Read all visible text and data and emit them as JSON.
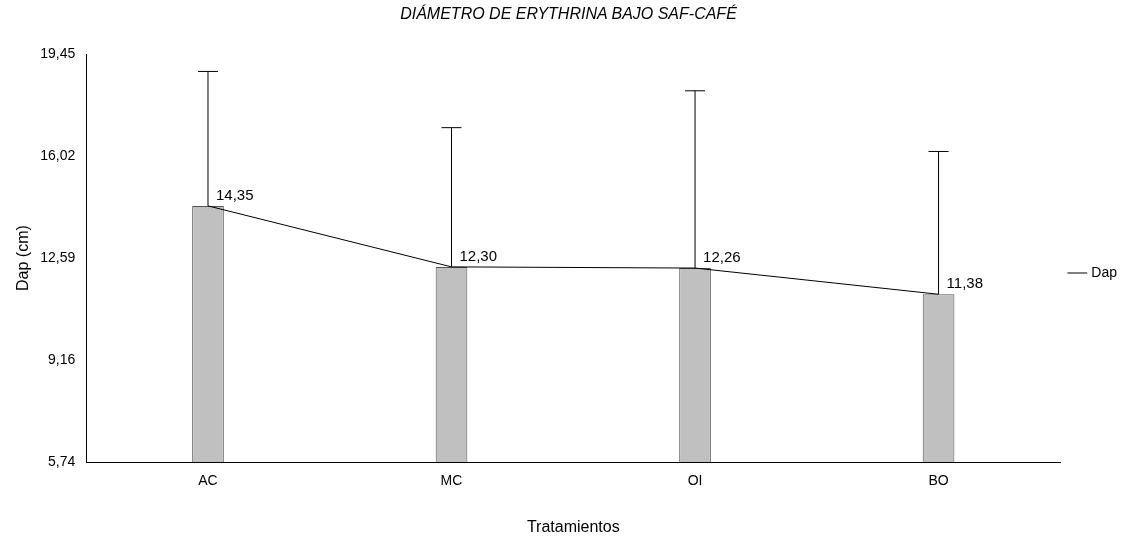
{
  "chart_data": {
    "type": "bar",
    "title": "DIÁMETRO DE ERYTHRINA BAJO SAF-CAFÉ",
    "xlabel": "Tratamientos",
    "ylabel": "Dap (cm)",
    "categories": [
      "AC",
      "MC",
      "OI",
      "BO"
    ],
    "series": [
      {
        "color": "#c0c0c0",
        "values": [
          14.35,
          12.3,
          12.26,
          11.38
        ],
        "errors": [
          [
            14.35,
            18.87
          ],
          [
            12.3,
            16.98
          ],
          [
            12.26,
            18.22
          ],
          [
            11.38,
            16.18
          ]
        ]
      },
      {
        "type": "line",
        "name": "Dap",
        "color": "#000000",
        "values": [
          14.35,
          12.3,
          12.26,
          11.38
        ],
        "value_labels": [
          "14,35",
          "12,30",
          "12,26",
          "11,38"
        ]
      }
    ],
    "ylim": [
      5.74,
      19.45
    ],
    "yticks": [
      {
        "value": 5.74,
        "label": "5,74"
      },
      {
        "value": 9.16,
        "label": "9,16"
      },
      {
        "value": 12.59,
        "label": "12,59"
      },
      {
        "value": 16.02,
        "label": "16,02"
      },
      {
        "value": 19.45,
        "label": "19,45"
      }
    ],
    "grid": false,
    "legend": "right"
  }
}
